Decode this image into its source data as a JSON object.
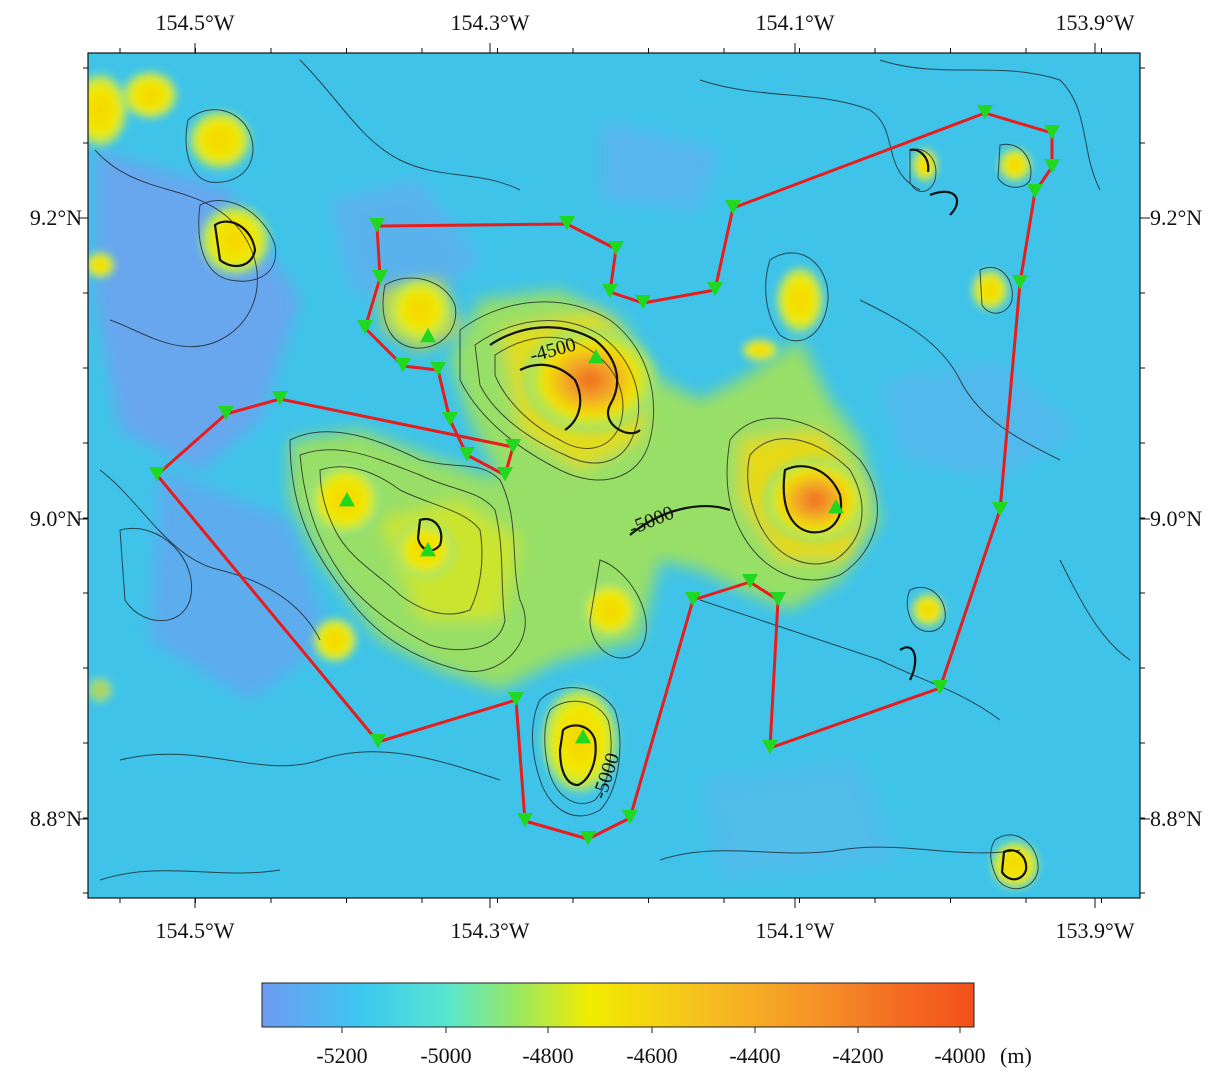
{
  "map": {
    "lon_ticks": [
      "154.5°W",
      "154.3°W",
      "154.1°W",
      "153.9°W"
    ],
    "lat_ticks": [
      "9.2°N",
      "9.0°N",
      "8.8°N"
    ],
    "contour_labels": [
      "-4500",
      "-5000",
      "-5000"
    ]
  },
  "colorbar": {
    "ticks": [
      "-5200",
      "-5000",
      "-4800",
      "-4600",
      "-4400",
      "-4200",
      "-4000"
    ],
    "unit": "(m)",
    "colors": [
      "#6e9cf3",
      "#3cc8f0",
      "#58e6d0",
      "#9ae860",
      "#f2ec00",
      "#f6c020",
      "#f59228",
      "#f46a22",
      "#f2501a"
    ]
  },
  "colors": {
    "track": "#e81c1c",
    "station_marker": "#1fd81f",
    "contour": "#1a1a1a",
    "background_sea": "#3ec0e8"
  }
}
